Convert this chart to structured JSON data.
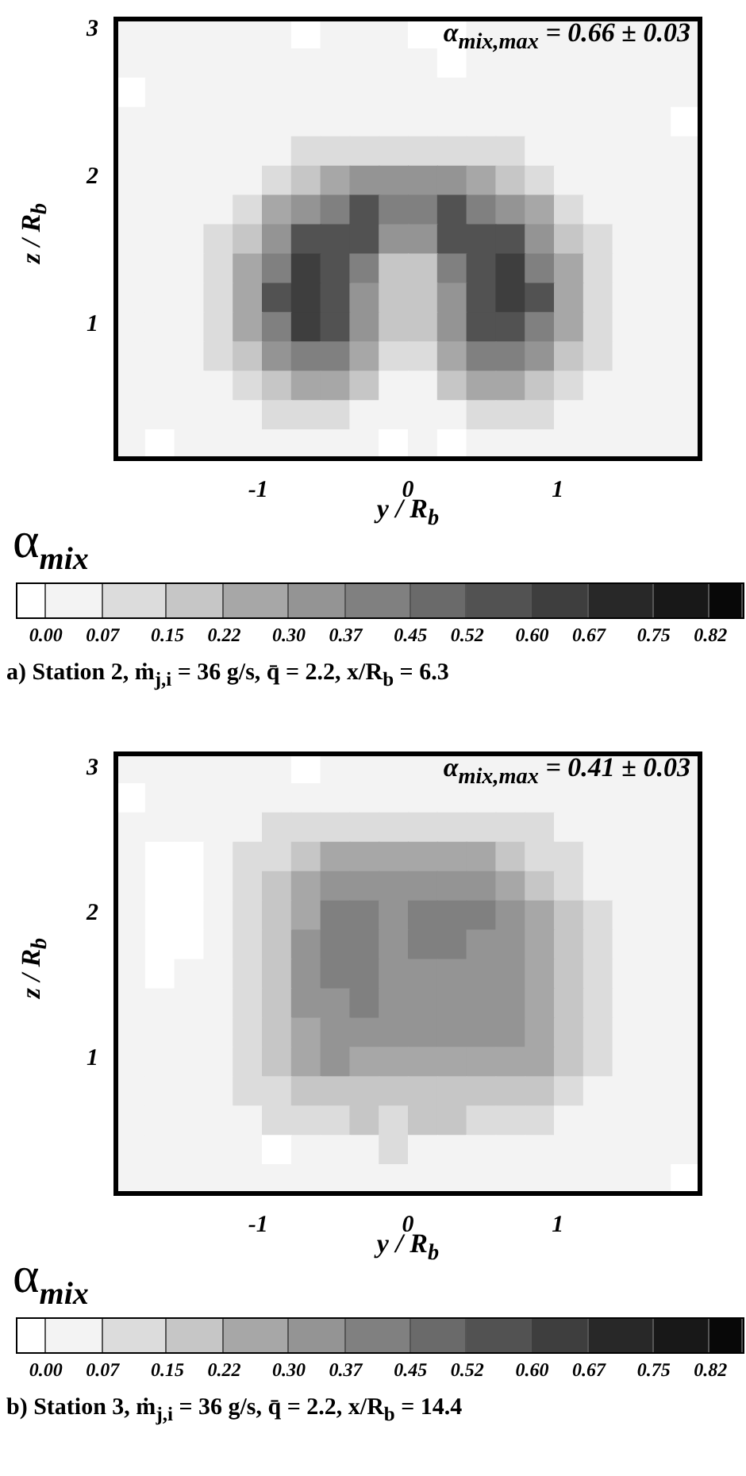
{
  "chart_data": [
    {
      "type": "heatmap",
      "title": "a) Station 2, ṁ$_{j,i}$ = 36 g/s, q̄ = 2.2, x/R$_{b}$ = 6.3",
      "xlabel": "y / R$_{b}$",
      "ylabel": "z / R$_{b}$",
      "clabel": "α$_{mix}$",
      "annotations": [
        "α$_{mix,max}$ = 0.66 ± 0.03"
      ],
      "xlim": [
        -1.95,
        1.95
      ],
      "xticks": [
        -1,
        0,
        1
      ],
      "ylim": [
        0.09,
        3.07
      ],
      "yticks": [
        1,
        2,
        3
      ],
      "grid": false,
      "clim": [
        -0.035,
        0.86
      ],
      "cticks": [
        {
          "value": 0,
          "label": "0.00"
        },
        {
          "value": 0.07,
          "label": "0.07"
        },
        {
          "value": 0.15,
          "label": "0.15"
        },
        {
          "value": 0.22,
          "label": "0.22"
        },
        {
          "value": 0.3,
          "label": "0.30"
        },
        {
          "value": 0.37,
          "label": "0.37"
        },
        {
          "value": 0.45,
          "label": "0.45"
        },
        {
          "value": 0.52,
          "label": "0.52"
        },
        {
          "value": 0.6,
          "label": "0.60"
        },
        {
          "value": 0.67,
          "label": "0.67"
        },
        {
          "value": 0.75,
          "label": "0.75"
        },
        {
          "value": 0.82,
          "label": "0.82"
        }
      ],
      "colors": [
        "#ffffff",
        "#f3f3f3",
        "#dcdcdc",
        "#c6c6c6",
        "#a7a7a7",
        "#949494",
        "#808080",
        "#6a6a6a",
        "#525252",
        "#3e3e3e",
        "#282828",
        "#181818",
        "#080808"
      ],
      "cells": [
        [
          0.03,
          0.03,
          0.03,
          0.03,
          0.03,
          0.03,
          -0.02,
          0.03,
          0.03,
          0.03,
          -0.02,
          -0.02,
          0.03,
          0.03,
          0.03,
          0.03,
          0.03,
          0.03,
          0.03,
          0.03
        ],
        [
          0.03,
          0.03,
          0.03,
          0.03,
          0.03,
          0.03,
          0.03,
          0.03,
          0.03,
          0.03,
          0.03,
          -0.02,
          0.03,
          0.03,
          0.03,
          0.03,
          0.03,
          0.03,
          0.03,
          0.03
        ],
        [
          -0.02,
          0.03,
          0.03,
          0.03,
          0.03,
          0.03,
          0.03,
          0.03,
          0.03,
          0.03,
          0.03,
          0.03,
          0.03,
          0.03,
          0.03,
          0.03,
          0.03,
          0.03,
          0.03,
          0.03
        ],
        [
          0.03,
          0.03,
          0.03,
          0.03,
          0.03,
          0.03,
          0.03,
          0.03,
          0.03,
          0.03,
          0.03,
          0.03,
          0.03,
          0.03,
          0.03,
          0.03,
          0.03,
          0.03,
          0.03,
          -0.02
        ],
        [
          0.03,
          0.03,
          0.03,
          0.03,
          0.03,
          0.03,
          0.11,
          0.11,
          0.11,
          0.11,
          0.11,
          0.11,
          0.11,
          0.11,
          0.03,
          0.03,
          0.03,
          0.03,
          0.03,
          0.03
        ],
        [
          0.03,
          0.03,
          0.03,
          0.03,
          0.03,
          0.11,
          0.18,
          0.26,
          0.33,
          0.33,
          0.33,
          0.33,
          0.26,
          0.18,
          0.11,
          0.03,
          0.03,
          0.03,
          0.03,
          0.03
        ],
        [
          0.03,
          0.03,
          0.03,
          0.03,
          0.11,
          0.26,
          0.33,
          0.41,
          0.56,
          0.41,
          0.41,
          0.56,
          0.41,
          0.33,
          0.26,
          0.11,
          0.03,
          0.03,
          0.03,
          0.03
        ],
        [
          0.03,
          0.03,
          0.03,
          0.11,
          0.18,
          0.33,
          0.56,
          0.56,
          0.56,
          0.33,
          0.33,
          0.56,
          0.56,
          0.56,
          0.33,
          0.18,
          0.11,
          0.03,
          0.03,
          0.03
        ],
        [
          0.03,
          0.03,
          0.03,
          0.11,
          0.26,
          0.41,
          0.63,
          0.56,
          0.41,
          0.18,
          0.18,
          0.41,
          0.56,
          0.63,
          0.41,
          0.26,
          0.11,
          0.03,
          0.03,
          0.03
        ],
        [
          0.03,
          0.03,
          0.03,
          0.11,
          0.26,
          0.56,
          0.63,
          0.56,
          0.33,
          0.18,
          0.18,
          0.33,
          0.56,
          0.63,
          0.56,
          0.26,
          0.11,
          0.03,
          0.03,
          0.03
        ],
        [
          0.03,
          0.03,
          0.03,
          0.11,
          0.26,
          0.41,
          0.63,
          0.56,
          0.33,
          0.18,
          0.18,
          0.33,
          0.56,
          0.56,
          0.41,
          0.26,
          0.11,
          0.03,
          0.03,
          0.03
        ],
        [
          0.03,
          0.03,
          0.03,
          0.11,
          0.18,
          0.33,
          0.41,
          0.41,
          0.26,
          0.11,
          0.11,
          0.26,
          0.41,
          0.41,
          0.33,
          0.18,
          0.11,
          0.03,
          0.03,
          0.03
        ],
        [
          0.03,
          0.03,
          0.03,
          0.03,
          0.11,
          0.18,
          0.26,
          0.26,
          0.18,
          0.03,
          0.03,
          0.18,
          0.26,
          0.26,
          0.18,
          0.11,
          0.03,
          0.03,
          0.03,
          0.03
        ],
        [
          0.03,
          0.03,
          0.03,
          0.03,
          0.03,
          0.11,
          0.11,
          0.11,
          0.03,
          0.03,
          0.03,
          0.03,
          0.11,
          0.11,
          0.11,
          0.03,
          0.03,
          0.03,
          0.03,
          0.03
        ],
        [
          0.03,
          -0.02,
          0.03,
          0.03,
          0.03,
          0.03,
          0.03,
          0.03,
          0.03,
          -0.02,
          0.03,
          -0.02,
          0.03,
          0.03,
          0.03,
          0.03,
          0.03,
          0.03,
          0.03,
          0.03
        ]
      ]
    },
    {
      "type": "heatmap",
      "title": "b) Station 3, ṁ$_{j,i}$ = 36 g/s, q̄ = 2.2, x/R$_{b}$ = 14.4",
      "xlabel": "y / R$_{b}$",
      "ylabel": "z / R$_{b}$",
      "clabel": "α$_{mix}$",
      "annotations": [
        "α$_{mix,max}$ = 0.41 ± 0.03"
      ],
      "xlim": [
        -1.95,
        1.95
      ],
      "xticks": [
        -1,
        0,
        1
      ],
      "ylim": [
        0.07,
        3.1
      ],
      "yticks": [
        1,
        2,
        3
      ],
      "grid": false,
      "clim": [
        -0.035,
        0.86
      ],
      "cticks": [
        {
          "value": 0,
          "label": "0.00"
        },
        {
          "value": 0.07,
          "label": "0.07"
        },
        {
          "value": 0.15,
          "label": "0.15"
        },
        {
          "value": 0.22,
          "label": "0.22"
        },
        {
          "value": 0.3,
          "label": "0.30"
        },
        {
          "value": 0.37,
          "label": "0.37"
        },
        {
          "value": 0.45,
          "label": "0.45"
        },
        {
          "value": 0.52,
          "label": "0.52"
        },
        {
          "value": 0.6,
          "label": "0.60"
        },
        {
          "value": 0.67,
          "label": "0.67"
        },
        {
          "value": 0.75,
          "label": "0.75"
        },
        {
          "value": 0.82,
          "label": "0.82"
        }
      ],
      "colors": [
        "#ffffff",
        "#f3f3f3",
        "#dcdcdc",
        "#c6c6c6",
        "#a7a7a7",
        "#949494",
        "#808080",
        "#6a6a6a",
        "#525252",
        "#3e3e3e",
        "#282828",
        "#181818",
        "#080808"
      ],
      "cells": [
        [
          0.03,
          0.03,
          0.03,
          0.03,
          0.03,
          0.03,
          -0.02,
          0.03,
          0.03,
          0.03,
          0.03,
          0.03,
          0.03,
          0.03,
          0.03,
          0.03,
          0.03,
          0.03,
          0.03,
          0.03
        ],
        [
          -0.02,
          0.03,
          0.03,
          0.03,
          0.03,
          0.03,
          0.03,
          0.03,
          0.03,
          0.03,
          0.03,
          0.03,
          0.03,
          0.03,
          0.03,
          0.03,
          0.03,
          0.03,
          0.03,
          0.03
        ],
        [
          0.03,
          0.03,
          0.03,
          0.03,
          0.03,
          0.11,
          0.11,
          0.11,
          0.11,
          0.11,
          0.11,
          0.11,
          0.11,
          0.11,
          0.11,
          0.03,
          0.03,
          0.03,
          0.03,
          0.03
        ],
        [
          0.03,
          -0.02,
          -0.02,
          0.03,
          0.11,
          0.11,
          0.18,
          0.26,
          0.26,
          0.26,
          0.26,
          0.26,
          0.26,
          0.18,
          0.11,
          0.11,
          0.03,
          0.03,
          0.03,
          0.03
        ],
        [
          0.03,
          -0.02,
          -0.02,
          0.03,
          0.11,
          0.18,
          0.26,
          0.33,
          0.33,
          0.33,
          0.33,
          0.33,
          0.33,
          0.26,
          0.18,
          0.11,
          0.03,
          0.03,
          0.03,
          0.03
        ],
        [
          0.03,
          -0.02,
          -0.02,
          0.03,
          0.11,
          0.18,
          0.26,
          0.41,
          0.41,
          0.33,
          0.41,
          0.41,
          0.41,
          0.33,
          0.26,
          0.18,
          0.11,
          0.03,
          0.03,
          0.03
        ],
        [
          0.03,
          -0.02,
          -0.02,
          0.03,
          0.11,
          0.18,
          0.33,
          0.41,
          0.41,
          0.33,
          0.41,
          0.41,
          0.33,
          0.33,
          0.26,
          0.18,
          0.11,
          0.03,
          0.03,
          0.03
        ],
        [
          0.03,
          -0.02,
          0.03,
          0.03,
          0.11,
          0.18,
          0.33,
          0.41,
          0.41,
          0.33,
          0.33,
          0.33,
          0.33,
          0.33,
          0.26,
          0.18,
          0.11,
          0.03,
          0.03,
          0.03
        ],
        [
          0.03,
          0.03,
          0.03,
          0.03,
          0.11,
          0.18,
          0.33,
          0.33,
          0.41,
          0.33,
          0.33,
          0.33,
          0.33,
          0.33,
          0.26,
          0.18,
          0.11,
          0.03,
          0.03,
          0.03
        ],
        [
          0.03,
          0.03,
          0.03,
          0.03,
          0.11,
          0.18,
          0.26,
          0.33,
          0.33,
          0.33,
          0.33,
          0.33,
          0.33,
          0.33,
          0.26,
          0.18,
          0.11,
          0.03,
          0.03,
          0.03
        ],
        [
          0.03,
          0.03,
          0.03,
          0.03,
          0.11,
          0.18,
          0.26,
          0.33,
          0.26,
          0.26,
          0.26,
          0.26,
          0.26,
          0.26,
          0.26,
          0.18,
          0.11,
          0.03,
          0.03,
          0.03
        ],
        [
          0.03,
          0.03,
          0.03,
          0.03,
          0.11,
          0.11,
          0.18,
          0.18,
          0.18,
          0.18,
          0.18,
          0.18,
          0.18,
          0.18,
          0.18,
          0.11,
          0.03,
          0.03,
          0.03,
          0.03
        ],
        [
          0.03,
          0.03,
          0.03,
          0.03,
          0.03,
          0.11,
          0.11,
          0.11,
          0.18,
          0.11,
          0.18,
          0.18,
          0.11,
          0.11,
          0.11,
          0.03,
          0.03,
          0.03,
          0.03,
          0.03
        ],
        [
          0.03,
          0.03,
          0.03,
          0.03,
          0.03,
          -0.02,
          0.03,
          0.03,
          0.03,
          0.11,
          0.03,
          0.03,
          0.03,
          0.03,
          0.03,
          0.03,
          0.03,
          0.03,
          0.03,
          0.03
        ],
        [
          0.03,
          0.03,
          0.03,
          0.03,
          0.03,
          0.03,
          0.03,
          0.03,
          0.03,
          0.03,
          0.03,
          0.03,
          0.03,
          0.03,
          0.03,
          0.03,
          0.03,
          0.03,
          0.03,
          -0.02
        ]
      ]
    }
  ]
}
